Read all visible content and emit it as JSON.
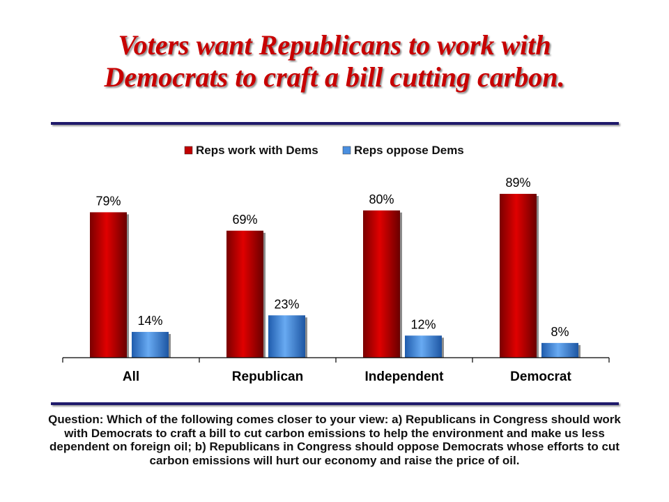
{
  "title_line1": "Voters want Republicans to work with",
  "title_line2": "Democrats to craft a bill cutting carbon.",
  "question": "Question: Which of the following comes closer to your view: a) Republicans in Congress should work with Democrats to craft a bill to cut carbon emissions to help the environment and make us less dependent on foreign oil; b) Republicans in Congress should oppose Democrats whose efforts to cut carbon emissions will hurt our economy and raise the price of oil.",
  "colors": {
    "title": "#c80000",
    "rule": "#1f1a6b",
    "series_work": "#c00000",
    "series_oppose": "#4a8fe0"
  },
  "chart_data": {
    "type": "bar",
    "categories": [
      "All",
      "Republican",
      "Independent",
      "Democrat"
    ],
    "series": [
      {
        "name": "Reps work with Dems",
        "values": [
          79,
          69,
          80,
          89
        ],
        "labels": [
          "79%",
          "69%",
          "80%",
          "89%"
        ]
      },
      {
        "name": "Reps oppose Dems",
        "values": [
          14,
          23,
          12,
          8
        ],
        "labels": [
          "14%",
          "23%",
          "12%",
          "8%"
        ]
      }
    ],
    "ylim": [
      0,
      100
    ],
    "legend": "top-center",
    "grid": false
  }
}
